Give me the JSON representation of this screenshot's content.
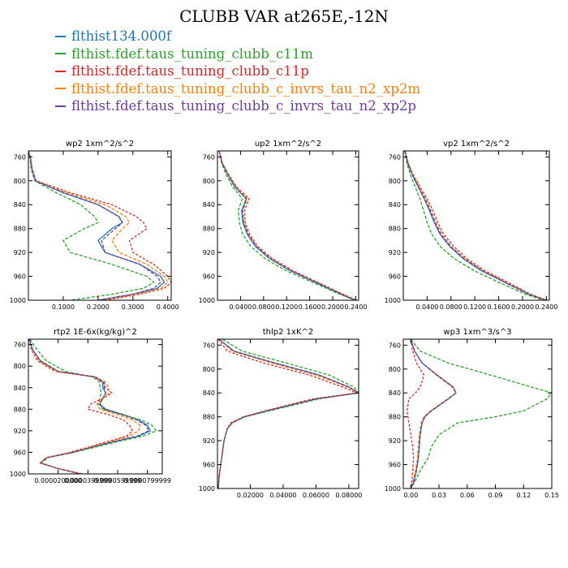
{
  "title": "CLUBB VAR at265E,-12N",
  "series_styles": [
    {
      "name": "flthist134.000f",
      "color": "#1f77b4",
      "dash": ""
    },
    {
      "name": "flthist.fdef.taus_tuning_clubb_c11m",
      "color": "#2ca02c",
      "dash": "4,2"
    },
    {
      "name": "flthist.fdef.taus_tuning_clubb_c11p",
      "color": "#d62728",
      "dash": "3,2"
    },
    {
      "name": "flthist.fdef.taus_tuning_clubb_c_invrs_tau_n2_xp2m",
      "color": "#ff7f0e",
      "dash": "4,2"
    },
    {
      "name": "flthist.fdef.taus_tuning_clubb_c_invrs_tau_n2_xp2p",
      "color": "#6a3d9a",
      "dash": "4,2"
    }
  ],
  "chart_data": [
    {
      "type": "line",
      "title": "wp2 1xm^2/s^2",
      "ylim": [
        1000,
        750
      ],
      "xlim": [
        0,
        0.41
      ],
      "y_ticks": [
        "760",
        "800",
        "840",
        "880",
        "920",
        "960",
        "1000"
      ],
      "y_tick_values": [
        760,
        800,
        840,
        880,
        920,
        960,
        1000
      ],
      "x_ticks": [
        "0.1000",
        "0.2000",
        "0.3000",
        "0.4000"
      ],
      "x_tick_values": [
        0.1,
        0.2,
        0.3,
        0.4
      ],
      "y": [
        750,
        760,
        780,
        800,
        820,
        840,
        860,
        870,
        880,
        900,
        920,
        940,
        960,
        970,
        980,
        990,
        1000
      ],
      "series": [
        {
          "name": "flthist134.000f",
          "values": [
            0.0,
            0.005,
            0.01,
            0.02,
            0.1,
            0.2,
            0.26,
            0.27,
            0.24,
            0.2,
            0.22,
            0.32,
            0.38,
            0.39,
            0.37,
            0.3,
            0.2
          ]
        },
        {
          "name": "flthist.fdef.taus_tuning_clubb_c11m",
          "values": [
            0.0,
            0.004,
            0.008,
            0.018,
            0.08,
            0.15,
            0.19,
            0.2,
            0.16,
            0.1,
            0.12,
            0.24,
            0.34,
            0.36,
            0.33,
            0.24,
            0.12
          ]
        },
        {
          "name": "flthist.fdef.taus_tuning_clubb_c11p",
          "values": [
            0.0,
            0.006,
            0.011,
            0.022,
            0.12,
            0.24,
            0.31,
            0.33,
            0.34,
            0.29,
            0.3,
            0.36,
            0.4,
            0.41,
            0.39,
            0.32,
            0.22
          ]
        },
        {
          "name": "flthist.fdef.taus_tuning_clubb_c_invrs_tau_n2_xp2m",
          "values": [
            0.0,
            0.005,
            0.01,
            0.02,
            0.11,
            0.22,
            0.28,
            0.29,
            0.27,
            0.24,
            0.26,
            0.34,
            0.39,
            0.4,
            0.38,
            0.31,
            0.21
          ]
        },
        {
          "name": "flthist.fdef.taus_tuning_clubb_c_invrs_tau_n2_xp2p",
          "values": [
            0.0,
            0.005,
            0.01,
            0.02,
            0.1,
            0.2,
            0.26,
            0.27,
            0.25,
            0.21,
            0.22,
            0.32,
            0.37,
            0.38,
            0.36,
            0.3,
            0.2
          ]
        }
      ]
    },
    {
      "type": "line",
      "title": "up2 1xm^2/s^2",
      "ylim": [
        1000,
        750
      ],
      "xlim": [
        0,
        0.245
      ],
      "y_ticks": [
        "760",
        "800",
        "840",
        "880",
        "920",
        "960",
        "1000"
      ],
      "y_tick_values": [
        760,
        800,
        840,
        880,
        920,
        960,
        1000
      ],
      "x_ticks": [
        "0.0400",
        "0.0800",
        "0.1200",
        "0.1600",
        "0.2000",
        "0.2400"
      ],
      "x_tick_values": [
        0.04,
        0.08,
        0.12,
        0.16,
        0.2,
        0.24
      ],
      "y": [
        750,
        770,
        790,
        810,
        830,
        850,
        870,
        890,
        910,
        930,
        950,
        970,
        990,
        1000
      ],
      "series": [
        {
          "name": "flthist134.000f",
          "values": [
            0.003,
            0.008,
            0.018,
            0.03,
            0.05,
            0.042,
            0.044,
            0.052,
            0.066,
            0.09,
            0.125,
            0.17,
            0.215,
            0.24
          ]
        },
        {
          "name": "flthist.fdef.taus_tuning_clubb_c11m",
          "values": [
            0.003,
            0.007,
            0.015,
            0.026,
            0.043,
            0.036,
            0.038,
            0.044,
            0.058,
            0.082,
            0.118,
            0.165,
            0.212,
            0.238
          ]
        },
        {
          "name": "flthist.fdef.taus_tuning_clubb_c11p",
          "values": [
            0.003,
            0.008,
            0.02,
            0.033,
            0.055,
            0.047,
            0.048,
            0.056,
            0.07,
            0.095,
            0.13,
            0.174,
            0.218,
            0.241
          ]
        },
        {
          "name": "flthist.fdef.taus_tuning_clubb_c_invrs_tau_n2_xp2m",
          "values": [
            0.003,
            0.008,
            0.019,
            0.032,
            0.052,
            0.044,
            0.046,
            0.054,
            0.068,
            0.092,
            0.127,
            0.172,
            0.216,
            0.24
          ]
        },
        {
          "name": "flthist.fdef.taus_tuning_clubb_c_invrs_tau_n2_xp2p",
          "values": [
            0.003,
            0.008,
            0.018,
            0.03,
            0.05,
            0.043,
            0.045,
            0.053,
            0.067,
            0.091,
            0.126,
            0.171,
            0.215,
            0.24
          ]
        }
      ]
    },
    {
      "type": "line",
      "title": "vp2 1xm^2/s^2",
      "ylim": [
        1000,
        750
      ],
      "xlim": [
        0,
        0.245
      ],
      "y_ticks": [
        "760",
        "800",
        "840",
        "880",
        "920",
        "960",
        "1000"
      ],
      "y_tick_values": [
        760,
        800,
        840,
        880,
        920,
        960,
        1000
      ],
      "x_ticks": [
        "0.0400",
        "0.0800",
        "0.1200",
        "0.1600",
        "0.2000",
        "0.2400"
      ],
      "x_tick_values": [
        0.04,
        0.08,
        0.12,
        0.16,
        0.2,
        0.24
      ],
      "y": [
        750,
        770,
        790,
        810,
        830,
        850,
        870,
        890,
        910,
        930,
        950,
        970,
        990,
        1000
      ],
      "series": [
        {
          "name": "flthist134.000f",
          "values": [
            0.003,
            0.007,
            0.015,
            0.025,
            0.035,
            0.044,
            0.052,
            0.062,
            0.078,
            0.1,
            0.13,
            0.17,
            0.21,
            0.24
          ]
        },
        {
          "name": "flthist.fdef.taus_tuning_clubb_c11m",
          "values": [
            0.002,
            0.006,
            0.012,
            0.02,
            0.028,
            0.034,
            0.04,
            0.048,
            0.062,
            0.085,
            0.118,
            0.16,
            0.205,
            0.235
          ]
        },
        {
          "name": "flthist.fdef.taus_tuning_clubb_c11p",
          "values": [
            0.003,
            0.008,
            0.017,
            0.028,
            0.04,
            0.05,
            0.058,
            0.068,
            0.085,
            0.106,
            0.136,
            0.175,
            0.214,
            0.24
          ]
        },
        {
          "name": "flthist.fdef.taus_tuning_clubb_c_invrs_tau_n2_xp2m",
          "values": [
            0.003,
            0.008,
            0.016,
            0.027,
            0.038,
            0.047,
            0.055,
            0.065,
            0.081,
            0.103,
            0.133,
            0.172,
            0.212,
            0.24
          ]
        },
        {
          "name": "flthist.fdef.taus_tuning_clubb_c_invrs_tau_n2_xp2p",
          "values": [
            0.003,
            0.007,
            0.015,
            0.025,
            0.036,
            0.045,
            0.053,
            0.063,
            0.079,
            0.101,
            0.131,
            0.171,
            0.211,
            0.24
          ]
        }
      ]
    },
    {
      "type": "line",
      "title": "rtp2 1E-6x(kg/kg)^2",
      "ylim": [
        1000,
        750
      ],
      "xlim": [
        0,
        9e-05
      ],
      "y_ticks": [
        "760",
        "800",
        "840",
        "880",
        "920",
        "960",
        "1000"
      ],
      "y_tick_values": [
        760,
        800,
        840,
        880,
        920,
        960,
        1000
      ],
      "x_ticks": [
        "0.0000200000",
        "0.0000399999",
        "0.0000599999",
        "0.0000799999"
      ],
      "x_tick_values": [
        2e-05,
        4e-05,
        6e-05,
        8e-05
      ],
      "y": [
        750,
        770,
        790,
        810,
        820,
        830,
        840,
        850,
        860,
        870,
        880,
        890,
        900,
        910,
        920,
        930,
        940,
        960,
        970,
        980,
        990,
        1000
      ],
      "series": [
        {
          "name": "flthist134.000f",
          "values": [
            5e-07,
            3e-06,
            8e-06,
            2e-05,
            4.5e-05,
            5e-05,
            5e-05,
            5.2e-05,
            5e-05,
            4.8e-05,
            5.2e-05,
            6.4e-05,
            7.4e-05,
            8e-05,
            8.2e-05,
            7.4e-05,
            5.8e-05,
            3e-05,
            1.2e-05,
            8e-06,
            2e-05,
            3.5e-05
          ]
        },
        {
          "name": "flthist.fdef.taus_tuning_clubb_c11m",
          "values": [
            1e-06,
            6e-06,
            1.2e-05,
            2.5e-05,
            4.3e-05,
            4.8e-05,
            4.8e-05,
            4.9e-05,
            4.8e-05,
            4.7e-05,
            5e-05,
            6.3e-05,
            7.6e-05,
            8.3e-05,
            8.6e-05,
            7.7e-05,
            6e-05,
            3.1e-05,
            1.3e-05,
            9e-06,
            2e-05,
            3.4e-05
          ]
        },
        {
          "name": "flthist.fdef.taus_tuning_clubb_c11p",
          "values": [
            5e-07,
            2e-06,
            6e-06,
            1.8e-05,
            4.4e-05,
            5e-05,
            5.2e-05,
            5.6e-05,
            5e-05,
            4.2e-05,
            4e-05,
            5.4e-05,
            6.4e-05,
            6.8e-05,
            7e-05,
            6.6e-05,
            5.3e-05,
            2.8e-05,
            1.2e-05,
            8e-06,
            2e-05,
            3.6e-05
          ]
        },
        {
          "name": "flthist.fdef.taus_tuning_clubb_c_invrs_tau_n2_xp2m",
          "values": [
            5e-07,
            3e-06,
            7e-06,
            1.9e-05,
            4.5e-05,
            5.2e-05,
            5.4e-05,
            5.4e-05,
            5e-05,
            4.6e-05,
            4.8e-05,
            6e-05,
            7e-05,
            7.5e-05,
            7.4e-05,
            6.8e-05,
            5.5e-05,
            2.9e-05,
            1.2e-05,
            8e-06,
            2e-05,
            3.5e-05
          ]
        },
        {
          "name": "flthist.fdef.taus_tuning_clubb_c_invrs_tau_n2_xp2p",
          "values": [
            5e-07,
            3e-06,
            8e-06,
            2e-05,
            4.5e-05,
            5.1e-05,
            5.1e-05,
            5.2e-05,
            5e-05,
            4.8e-05,
            5.1e-05,
            6.3e-05,
            7.3e-05,
            7.9e-05,
            8.1e-05,
            7.3e-05,
            5.7e-05,
            3e-05,
            1.2e-05,
            8e-06,
            2e-05,
            3.5e-05
          ]
        }
      ]
    },
    {
      "type": "line",
      "title": "thlp2 1xK^2",
      "ylim": [
        1000,
        750
      ],
      "xlim": [
        0,
        0.086
      ],
      "y_ticks": [
        "760",
        "800",
        "840",
        "880",
        "920",
        "960",
        "1000"
      ],
      "y_tick_values": [
        760,
        800,
        840,
        880,
        920,
        960,
        1000
      ],
      "x_ticks": [
        "0.02000",
        "0.04000",
        "0.06000",
        "0.08000"
      ],
      "x_tick_values": [
        0.02,
        0.04,
        0.06,
        0.08
      ],
      "y": [
        750,
        770,
        790,
        810,
        830,
        840,
        850,
        870,
        880,
        890,
        900,
        920,
        940,
        960,
        980,
        1000
      ],
      "series": [
        {
          "name": "flthist134.000f",
          "values": [
            0.001,
            0.01,
            0.035,
            0.062,
            0.08,
            0.086,
            0.06,
            0.03,
            0.016,
            0.009,
            0.006,
            0.004,
            0.003,
            0.002,
            0.001,
            0.0005
          ]
        },
        {
          "name": "flthist.fdef.taus_tuning_clubb_c11m",
          "values": [
            0.003,
            0.015,
            0.042,
            0.068,
            0.083,
            0.086,
            0.062,
            0.032,
            0.017,
            0.009,
            0.006,
            0.004,
            0.003,
            0.002,
            0.001,
            0.0005
          ]
        },
        {
          "name": "flthist.fdef.taus_tuning_clubb_c11p",
          "values": [
            0.0005,
            0.006,
            0.028,
            0.056,
            0.076,
            0.085,
            0.058,
            0.029,
            0.016,
            0.008,
            0.006,
            0.004,
            0.003,
            0.002,
            0.001,
            0.0005
          ]
        },
        {
          "name": "flthist.fdef.taus_tuning_clubb_c_invrs_tau_n2_xp2m",
          "values": [
            0.001,
            0.009,
            0.033,
            0.06,
            0.079,
            0.086,
            0.06,
            0.03,
            0.016,
            0.009,
            0.006,
            0.004,
            0.003,
            0.002,
            0.001,
            0.0005
          ]
        },
        {
          "name": "flthist.fdef.taus_tuning_clubb_c_invrs_tau_n2_xp2p",
          "values": [
            0.001,
            0.01,
            0.035,
            0.062,
            0.08,
            0.086,
            0.06,
            0.03,
            0.016,
            0.009,
            0.006,
            0.004,
            0.003,
            0.002,
            0.001,
            0.0005
          ]
        }
      ]
    },
    {
      "type": "line",
      "title": "wp3 1xm^3/s^3",
      "ylim": [
        1000,
        750
      ],
      "xlim": [
        -0.008,
        0.15
      ],
      "y_ticks": [
        "760",
        "800",
        "840",
        "880",
        "920",
        "960",
        "1000"
      ],
      "y_tick_values": [
        760,
        800,
        840,
        880,
        920,
        960,
        1000
      ],
      "x_ticks": [
        "0.00",
        "0.03",
        "0.06",
        "0.09",
        "0.12",
        "0.15"
      ],
      "x_tick_values": [
        0,
        0.03,
        0.06,
        0.09,
        0.12,
        0.15
      ],
      "y": [
        750,
        770,
        790,
        810,
        830,
        840,
        850,
        870,
        880,
        890,
        910,
        930,
        950,
        970,
        990,
        1000
      ],
      "series": [
        {
          "name": "flthist134.000f",
          "values": [
            0.0,
            0.004,
            0.012,
            0.028,
            0.045,
            0.048,
            0.04,
            0.022,
            0.015,
            0.012,
            0.01,
            0.009,
            0.008,
            0.006,
            0.003,
            0.0
          ]
        },
        {
          "name": "flthist.fdef.taus_tuning_clubb_c11m",
          "values": [
            0.0,
            0.01,
            0.04,
            0.085,
            0.128,
            0.15,
            0.145,
            0.12,
            0.09,
            0.05,
            0.03,
            0.022,
            0.018,
            0.01,
            0.004,
            0.0
          ]
        },
        {
          "name": "flthist.fdef.taus_tuning_clubb_c11p",
          "values": [
            0.0,
            0.002,
            0.006,
            0.014,
            0.01,
            0.005,
            -0.002,
            -0.004,
            -0.003,
            -0.002,
            0.0,
            0.002,
            0.003,
            0.002,
            0.001,
            0.0
          ]
        },
        {
          "name": "flthist.fdef.taus_tuning_clubb_c_invrs_tau_n2_xp2m",
          "values": [
            0.0,
            0.004,
            0.012,
            0.027,
            0.044,
            0.048,
            0.039,
            0.021,
            0.014,
            0.011,
            0.009,
            0.008,
            0.007,
            0.005,
            0.002,
            0.0
          ]
        },
        {
          "name": "flthist.fdef.taus_tuning_clubb_c_invrs_tau_n2_xp2p",
          "values": [
            0.0,
            0.004,
            0.012,
            0.028,
            0.045,
            0.048,
            0.04,
            0.022,
            0.015,
            0.012,
            0.01,
            0.009,
            0.008,
            0.006,
            0.003,
            0.0
          ]
        }
      ]
    }
  ]
}
